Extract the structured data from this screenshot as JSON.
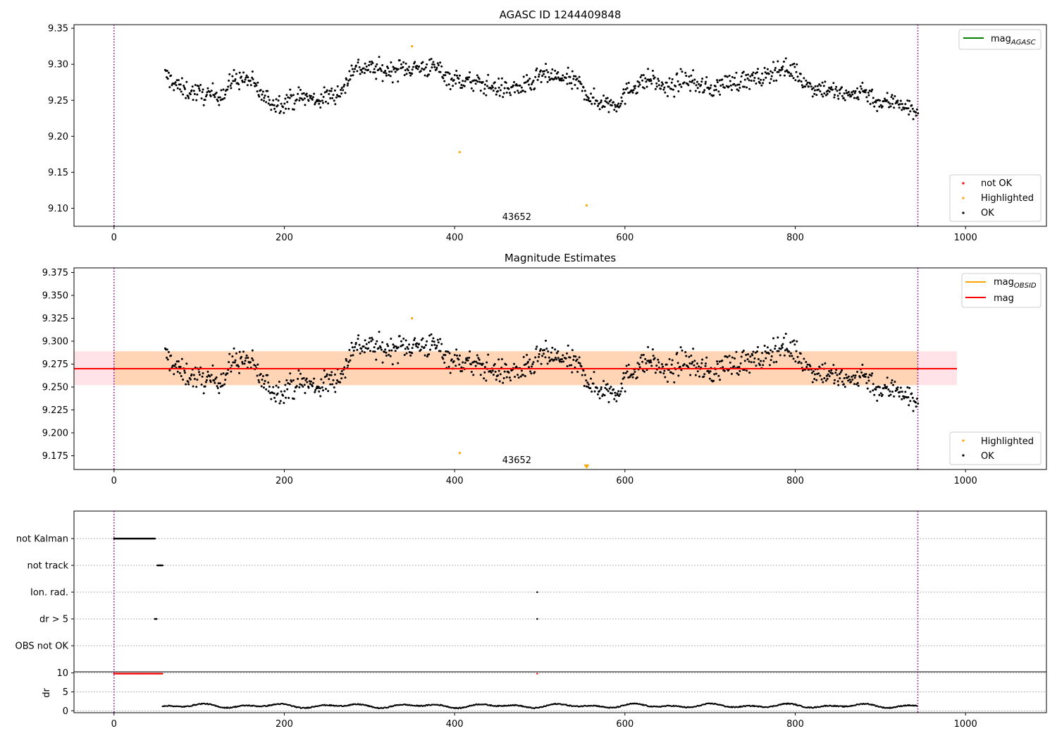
{
  "chart_data": [
    {
      "type": "scatter",
      "title": "AGASC ID 1244409848",
      "xlabel": "",
      "ylabel": "",
      "xlim": [
        -47,
        1095
      ],
      "ylim": [
        9.075,
        9.355
      ],
      "xticks": [
        0,
        200,
        400,
        600,
        800,
        1000
      ],
      "yticks": [
        9.1,
        9.15,
        9.2,
        9.25,
        9.3,
        9.35
      ],
      "ytick_labels": [
        "9.10",
        "9.15",
        "9.20",
        "9.25",
        "9.30",
        "9.35"
      ],
      "obsid_markers": [
        0,
        944
      ],
      "obsid_label": "43652",
      "obsid_label_x": 473,
      "legend_lines": [
        {
          "label": "mag",
          "sub": "AGASC",
          "color": "#008000"
        }
      ],
      "legend_points": [
        {
          "label": "not OK",
          "color": "#ff0000"
        },
        {
          "label": "Highlighted",
          "color": "#ffa500"
        },
        {
          "label": "OK",
          "color": "#000000"
        }
      ],
      "highlighted_points": [
        [
          350,
          9.325
        ],
        [
          406,
          9.178
        ],
        [
          555,
          9.104
        ]
      ],
      "ok_series": {
        "x_start": 60,
        "x_end": 944,
        "anchors": [
          [
            60,
            9.285
          ],
          [
            80,
            9.265
          ],
          [
            110,
            9.257
          ],
          [
            130,
            9.26
          ],
          [
            140,
            9.28
          ],
          [
            160,
            9.278
          ],
          [
            175,
            9.255
          ],
          [
            190,
            9.245
          ],
          [
            220,
            9.255
          ],
          [
            240,
            9.25
          ],
          [
            270,
            9.265
          ],
          [
            280,
            9.295
          ],
          [
            300,
            9.295
          ],
          [
            320,
            9.29
          ],
          [
            340,
            9.295
          ],
          [
            360,
            9.295
          ],
          [
            380,
            9.295
          ],
          [
            395,
            9.28
          ],
          [
            420,
            9.275
          ],
          [
            460,
            9.265
          ],
          [
            490,
            9.27
          ],
          [
            500,
            9.285
          ],
          [
            530,
            9.28
          ],
          [
            550,
            9.27
          ],
          [
            560,
            9.25
          ],
          [
            590,
            9.245
          ],
          [
            610,
            9.27
          ],
          [
            630,
            9.28
          ],
          [
            650,
            9.265
          ],
          [
            670,
            9.28
          ],
          [
            700,
            9.265
          ],
          [
            720,
            9.275
          ],
          [
            760,
            9.28
          ],
          [
            780,
            9.295
          ],
          [
            800,
            9.29
          ],
          [
            815,
            9.27
          ],
          [
            840,
            9.265
          ],
          [
            860,
            9.255
          ],
          [
            880,
            9.265
          ],
          [
            900,
            9.245
          ],
          [
            920,
            9.25
          ],
          [
            944,
            9.23
          ]
        ],
        "noise": 0.009
      }
    },
    {
      "type": "scatter",
      "title": "Magnitude Estimates",
      "xlabel": "",
      "ylabel": "",
      "xlim": [
        -47,
        1095
      ],
      "ylim": [
        9.16,
        9.38
      ],
      "xticks": [
        0,
        200,
        400,
        600,
        800,
        1000
      ],
      "yticks": [
        9.175,
        9.2,
        9.225,
        9.25,
        9.275,
        9.3,
        9.325,
        9.35,
        9.375
      ],
      "ytick_labels": [
        "9.175",
        "9.200",
        "9.225",
        "9.250",
        "9.275",
        "9.300",
        "9.325",
        "9.350",
        "9.375"
      ],
      "obsid_markers": [
        0,
        944
      ],
      "obsid_label": "43652",
      "obsid_label_x": 473,
      "mag_line": {
        "value": 9.27,
        "x_range": [
          -47,
          990
        ],
        "color": "#ff0000"
      },
      "mag_band": {
        "low": 9.252,
        "high": 9.289,
        "x_range": [
          -47,
          990
        ],
        "color": "#ffc0cb"
      },
      "obsid_band": {
        "low": 9.252,
        "high": 9.289,
        "x_range": [
          0,
          944
        ],
        "color": "#ffa500"
      },
      "legend_lines": [
        {
          "label": "mag",
          "sub": "OBSID",
          "color": "#ffa500"
        },
        {
          "label": "mag",
          "sub": "",
          "color": "#ff0000"
        }
      ],
      "legend_points": [
        {
          "label": "Highlighted",
          "color": "#ffa500"
        },
        {
          "label": "OK",
          "color": "#000000"
        }
      ],
      "highlighted_points": [
        [
          350,
          9.325
        ],
        [
          406,
          9.178
        ]
      ],
      "out_of_range_marker": {
        "x": 555,
        "color": "#ffa500"
      }
    },
    {
      "type": "scatter",
      "title": "",
      "xlim": [
        -47,
        1095
      ],
      "xticks": [
        0,
        200,
        400,
        600,
        800,
        1000
      ],
      "flag_rows": [
        "not Kalman",
        "not track",
        "Ion. rad.",
        "dr > 5",
        "OBS not OK"
      ],
      "flag_points": {
        "not Kalman": [
          [
            0,
            48
          ]
        ],
        "not track": [
          [
            51,
            57
          ]
        ],
        "Ion. rad.": [
          [
            497,
            497
          ]
        ],
        "dr > 5": [
          [
            48,
            50
          ],
          [
            497,
            497
          ]
        ],
        "OBS not OK": []
      },
      "obsid_markers": [
        0,
        944
      ],
      "dr": {
        "ylabel": "dr",
        "ylim": [
          -0.5,
          10.3
        ],
        "yticks": [
          0,
          5,
          10
        ],
        "ytick_labels": [
          "0",
          "5",
          "10"
        ],
        "capped_points": {
          "x_range": [
            0,
            57
          ],
          "value": 10,
          "color": "#ff0000"
        },
        "capped_extra": [
          [
            497,
            10
          ]
        ],
        "series": {
          "x_start": 57,
          "x_end": 944,
          "mean": 1.3,
          "amplitude": 0.6
        }
      }
    }
  ]
}
